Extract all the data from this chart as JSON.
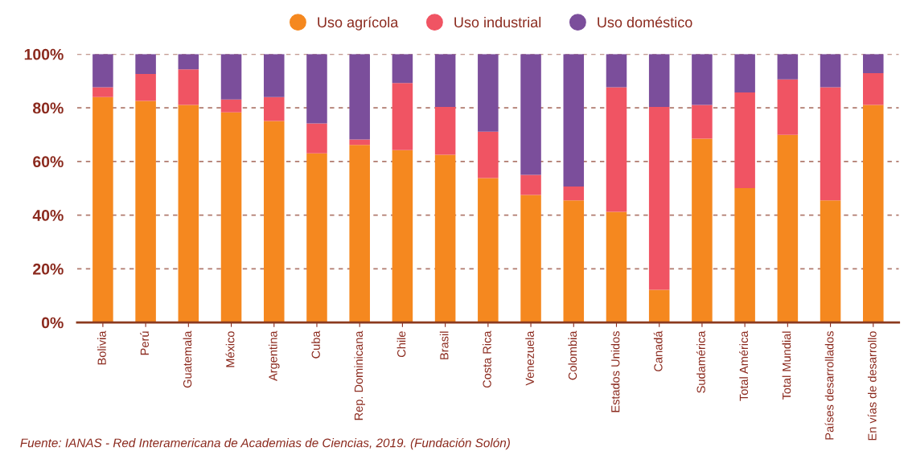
{
  "chart_data": {
    "type": "bar",
    "stacked": true,
    "categories": [
      "Bolivia",
      "Perú",
      "Guatemala",
      "México",
      "Argentina",
      "Cuba",
      "Rep. Dominicana",
      "Chile",
      "Brasil",
      "Costa Rica",
      "Venezuela",
      "Colombia",
      "Estados Unidos",
      "Canadá",
      "Sudamérica",
      "Total América",
      "Total Mundial",
      "Países desarrollados",
      "En vías de desarrollo"
    ],
    "series": [
      {
        "name": "Uso agrícola",
        "color": "#f5881f",
        "values": [
          84.0,
          82.6,
          81.1,
          78.3,
          75.1,
          63.0,
          66.2,
          64.2,
          62.5,
          53.8,
          47.5,
          45.5,
          41.2,
          12.2,
          68.5,
          50.1,
          69.9,
          45.5,
          81.1
        ]
      },
      {
        "name": "Uso industrial",
        "color": "#f05463",
        "values": [
          3.7,
          10.0,
          13.2,
          4.8,
          8.9,
          11.2,
          2.0,
          25.0,
          17.8,
          17.3,
          7.5,
          5.2,
          46.5,
          68.1,
          12.6,
          35.6,
          20.7,
          42.2,
          11.8
        ]
      },
      {
        "name": "Uso doméstico",
        "color": "#7b4e9b",
        "values": [
          12.3,
          7.4,
          5.7,
          16.9,
          16.0,
          25.8,
          31.8,
          10.8,
          19.7,
          28.9,
          45.0,
          49.3,
          12.3,
          19.7,
          18.9,
          14.3,
          9.4,
          12.3,
          7.1
        ]
      }
    ],
    "ylim": [
      0,
      100
    ],
    "yticks": [
      {
        "value": 0,
        "label": "0%"
      },
      {
        "value": 20,
        "label": "20%"
      },
      {
        "value": 40,
        "label": "40%"
      },
      {
        "value": 60,
        "label": "60%"
      },
      {
        "value": 80,
        "label": "80%"
      },
      {
        "value": 100,
        "label": "100%"
      }
    ],
    "grid": "y",
    "legend": "top",
    "annotations": [
      "Fuente: IANAS - Red Interamericana de Academias de Ciencias, 2019. (Fundación Solón)"
    ]
  }
}
